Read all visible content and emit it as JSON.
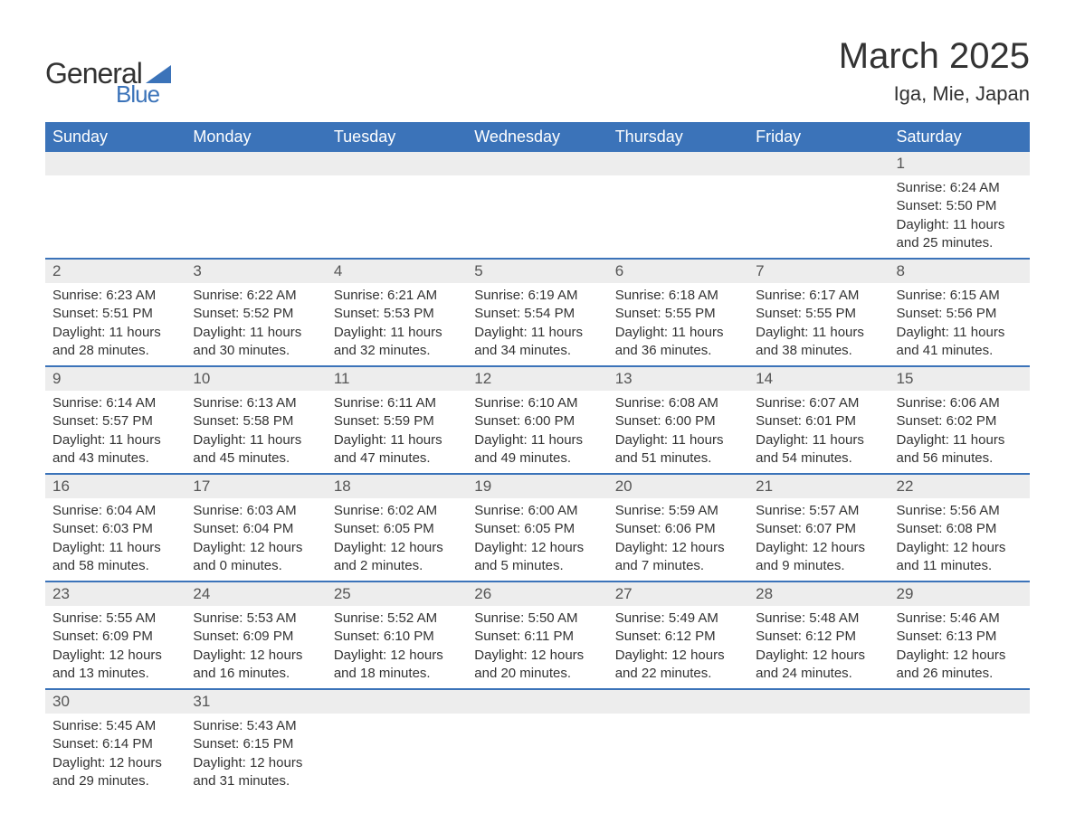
{
  "logo": {
    "text_general": "General",
    "text_blue": "Blue",
    "triangle_color": "#3b73b9",
    "text_color_general": "#333333"
  },
  "header": {
    "month_title": "March 2025",
    "location": "Iga, Mie, Japan"
  },
  "colors": {
    "header_bg": "#3b73b9",
    "header_text": "#ffffff",
    "daynum_bg": "#ededed",
    "border": "#3b73b9",
    "body_text": "#333333",
    "background": "#ffffff"
  },
  "fonts": {
    "month_title_size_pt": 30,
    "location_size_pt": 16,
    "day_header_size_pt": 13,
    "body_size_pt": 11
  },
  "day_headers": [
    "Sunday",
    "Monday",
    "Tuesday",
    "Wednesday",
    "Thursday",
    "Friday",
    "Saturday"
  ],
  "weeks": [
    [
      null,
      null,
      null,
      null,
      null,
      null,
      {
        "num": "1",
        "sunrise": "Sunrise: 6:24 AM",
        "sunset": "Sunset: 5:50 PM",
        "day1": "Daylight: 11 hours",
        "day2": "and 25 minutes."
      }
    ],
    [
      {
        "num": "2",
        "sunrise": "Sunrise: 6:23 AM",
        "sunset": "Sunset: 5:51 PM",
        "day1": "Daylight: 11 hours",
        "day2": "and 28 minutes."
      },
      {
        "num": "3",
        "sunrise": "Sunrise: 6:22 AM",
        "sunset": "Sunset: 5:52 PM",
        "day1": "Daylight: 11 hours",
        "day2": "and 30 minutes."
      },
      {
        "num": "4",
        "sunrise": "Sunrise: 6:21 AM",
        "sunset": "Sunset: 5:53 PM",
        "day1": "Daylight: 11 hours",
        "day2": "and 32 minutes."
      },
      {
        "num": "5",
        "sunrise": "Sunrise: 6:19 AM",
        "sunset": "Sunset: 5:54 PM",
        "day1": "Daylight: 11 hours",
        "day2": "and 34 minutes."
      },
      {
        "num": "6",
        "sunrise": "Sunrise: 6:18 AM",
        "sunset": "Sunset: 5:55 PM",
        "day1": "Daylight: 11 hours",
        "day2": "and 36 minutes."
      },
      {
        "num": "7",
        "sunrise": "Sunrise: 6:17 AM",
        "sunset": "Sunset: 5:55 PM",
        "day1": "Daylight: 11 hours",
        "day2": "and 38 minutes."
      },
      {
        "num": "8",
        "sunrise": "Sunrise: 6:15 AM",
        "sunset": "Sunset: 5:56 PM",
        "day1": "Daylight: 11 hours",
        "day2": "and 41 minutes."
      }
    ],
    [
      {
        "num": "9",
        "sunrise": "Sunrise: 6:14 AM",
        "sunset": "Sunset: 5:57 PM",
        "day1": "Daylight: 11 hours",
        "day2": "and 43 minutes."
      },
      {
        "num": "10",
        "sunrise": "Sunrise: 6:13 AM",
        "sunset": "Sunset: 5:58 PM",
        "day1": "Daylight: 11 hours",
        "day2": "and 45 minutes."
      },
      {
        "num": "11",
        "sunrise": "Sunrise: 6:11 AM",
        "sunset": "Sunset: 5:59 PM",
        "day1": "Daylight: 11 hours",
        "day2": "and 47 minutes."
      },
      {
        "num": "12",
        "sunrise": "Sunrise: 6:10 AM",
        "sunset": "Sunset: 6:00 PM",
        "day1": "Daylight: 11 hours",
        "day2": "and 49 minutes."
      },
      {
        "num": "13",
        "sunrise": "Sunrise: 6:08 AM",
        "sunset": "Sunset: 6:00 PM",
        "day1": "Daylight: 11 hours",
        "day2": "and 51 minutes."
      },
      {
        "num": "14",
        "sunrise": "Sunrise: 6:07 AM",
        "sunset": "Sunset: 6:01 PM",
        "day1": "Daylight: 11 hours",
        "day2": "and 54 minutes."
      },
      {
        "num": "15",
        "sunrise": "Sunrise: 6:06 AM",
        "sunset": "Sunset: 6:02 PM",
        "day1": "Daylight: 11 hours",
        "day2": "and 56 minutes."
      }
    ],
    [
      {
        "num": "16",
        "sunrise": "Sunrise: 6:04 AM",
        "sunset": "Sunset: 6:03 PM",
        "day1": "Daylight: 11 hours",
        "day2": "and 58 minutes."
      },
      {
        "num": "17",
        "sunrise": "Sunrise: 6:03 AM",
        "sunset": "Sunset: 6:04 PM",
        "day1": "Daylight: 12 hours",
        "day2": "and 0 minutes."
      },
      {
        "num": "18",
        "sunrise": "Sunrise: 6:02 AM",
        "sunset": "Sunset: 6:05 PM",
        "day1": "Daylight: 12 hours",
        "day2": "and 2 minutes."
      },
      {
        "num": "19",
        "sunrise": "Sunrise: 6:00 AM",
        "sunset": "Sunset: 6:05 PM",
        "day1": "Daylight: 12 hours",
        "day2": "and 5 minutes."
      },
      {
        "num": "20",
        "sunrise": "Sunrise: 5:59 AM",
        "sunset": "Sunset: 6:06 PM",
        "day1": "Daylight: 12 hours",
        "day2": "and 7 minutes."
      },
      {
        "num": "21",
        "sunrise": "Sunrise: 5:57 AM",
        "sunset": "Sunset: 6:07 PM",
        "day1": "Daylight: 12 hours",
        "day2": "and 9 minutes."
      },
      {
        "num": "22",
        "sunrise": "Sunrise: 5:56 AM",
        "sunset": "Sunset: 6:08 PM",
        "day1": "Daylight: 12 hours",
        "day2": "and 11 minutes."
      }
    ],
    [
      {
        "num": "23",
        "sunrise": "Sunrise: 5:55 AM",
        "sunset": "Sunset: 6:09 PM",
        "day1": "Daylight: 12 hours",
        "day2": "and 13 minutes."
      },
      {
        "num": "24",
        "sunrise": "Sunrise: 5:53 AM",
        "sunset": "Sunset: 6:09 PM",
        "day1": "Daylight: 12 hours",
        "day2": "and 16 minutes."
      },
      {
        "num": "25",
        "sunrise": "Sunrise: 5:52 AM",
        "sunset": "Sunset: 6:10 PM",
        "day1": "Daylight: 12 hours",
        "day2": "and 18 minutes."
      },
      {
        "num": "26",
        "sunrise": "Sunrise: 5:50 AM",
        "sunset": "Sunset: 6:11 PM",
        "day1": "Daylight: 12 hours",
        "day2": "and 20 minutes."
      },
      {
        "num": "27",
        "sunrise": "Sunrise: 5:49 AM",
        "sunset": "Sunset: 6:12 PM",
        "day1": "Daylight: 12 hours",
        "day2": "and 22 minutes."
      },
      {
        "num": "28",
        "sunrise": "Sunrise: 5:48 AM",
        "sunset": "Sunset: 6:12 PM",
        "day1": "Daylight: 12 hours",
        "day2": "and 24 minutes."
      },
      {
        "num": "29",
        "sunrise": "Sunrise: 5:46 AM",
        "sunset": "Sunset: 6:13 PM",
        "day1": "Daylight: 12 hours",
        "day2": "and 26 minutes."
      }
    ],
    [
      {
        "num": "30",
        "sunrise": "Sunrise: 5:45 AM",
        "sunset": "Sunset: 6:14 PM",
        "day1": "Daylight: 12 hours",
        "day2": "and 29 minutes."
      },
      {
        "num": "31",
        "sunrise": "Sunrise: 5:43 AM",
        "sunset": "Sunset: 6:15 PM",
        "day1": "Daylight: 12 hours",
        "day2": "and 31 minutes."
      },
      null,
      null,
      null,
      null,
      null
    ]
  ]
}
